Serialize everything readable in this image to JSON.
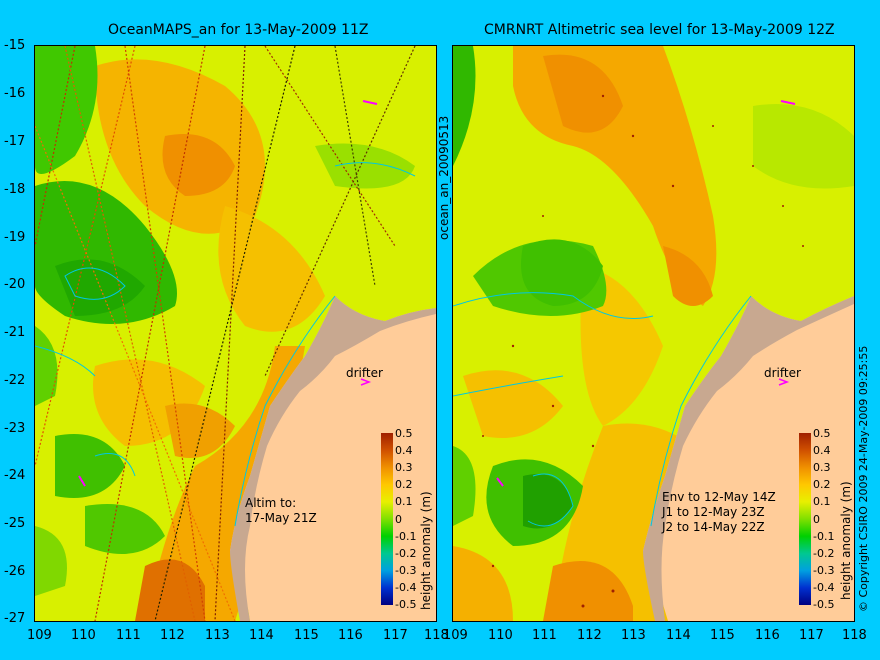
{
  "left_panel": {
    "title": "OceanMAPS_an for 13-May-2009 11Z",
    "note_lines": [
      "Altim to:",
      "17-May 21Z"
    ],
    "drifter_label": "drifter"
  },
  "right_panel": {
    "title": "CMRNRT Altimetric sea level  for 13-May-2009 12Z",
    "note_lines": [
      "Env to 12-May 14Z",
      "J1 to 12-May 23Z",
      "J2 to 14-May 22Z"
    ],
    "drifter_label": "drifter"
  },
  "side_label": "ocean_an_20090513",
  "copyright": "© Copyright CSIRO 2009   24-May-2009 09:25:55",
  "axes": {
    "lat_ticks": [
      "-15",
      "-16",
      "-17",
      "-18",
      "-19",
      "-20",
      "-21",
      "-22",
      "-23",
      "-24",
      "-25",
      "-26",
      "-27"
    ],
    "lon_ticks": [
      "109",
      "110",
      "111",
      "112",
      "113",
      "114",
      "115",
      "116",
      "117",
      "118"
    ],
    "lat_range": [
      -27,
      -15
    ],
    "lon_range": [
      109,
      118
    ]
  },
  "colorbar": {
    "label": "height anomaly (m)",
    "ticks": [
      "0.5",
      "0.4",
      "0.3",
      "0.2",
      "0.1",
      "0",
      "-0.1",
      "-0.2",
      "-0.3",
      "-0.4",
      "-0.5"
    ],
    "colors": [
      "#000080",
      "#0030d0",
      "#00a0e0",
      "#00c890",
      "#00d000",
      "#80e000",
      "#e8f000",
      "#ffc800",
      "#f09000",
      "#d05000",
      "#a02000"
    ]
  },
  "colors": {
    "background": "#00ccff",
    "land": "#ffcc99",
    "coast_shelf": "#c8a890",
    "sea_base": "#d8f000"
  }
}
